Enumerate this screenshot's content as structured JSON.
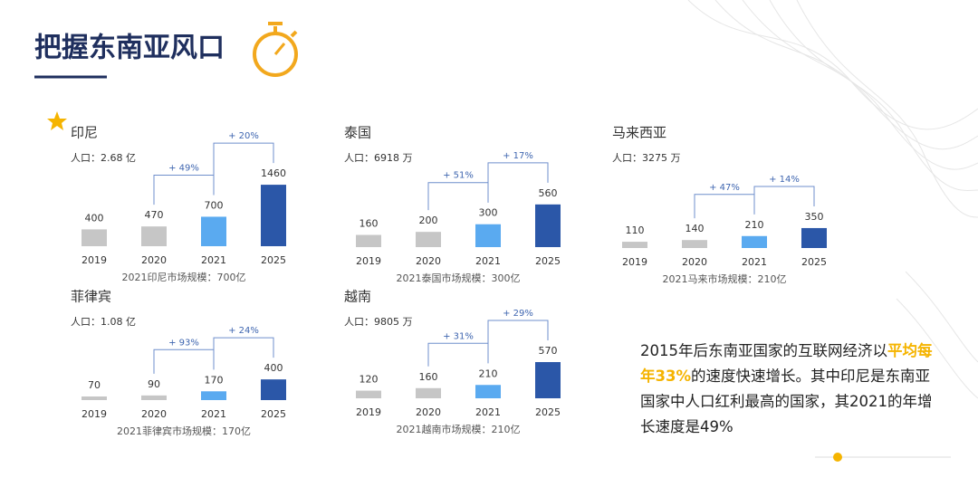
{
  "title": "把握东南亚风口",
  "chart_data": [
    {
      "type": "bar",
      "title": "印尼",
      "subtitle": "人口：2.68 亿",
      "categories": [
        "2019",
        "2020",
        "2021",
        "2025"
      ],
      "values": [
        400,
        470,
        700,
        1460
      ],
      "colors": [
        "#c6c6c6",
        "#c6c6c6",
        "#5aaaf0",
        "#2b57a8"
      ],
      "growth_labels": [
        null,
        null,
        "+ 49%",
        "+ 20%"
      ],
      "footer": "2021印尼市场规模：700亿",
      "ylim": [
        0,
        1720
      ]
    },
    {
      "type": "bar",
      "title": "泰国",
      "subtitle": "人口：6918 万",
      "categories": [
        "2019",
        "2020",
        "2021",
        "2025"
      ],
      "values": [
        160,
        200,
        300,
        560
      ],
      "colors": [
        "#c6c6c6",
        "#c6c6c6",
        "#5aaaf0",
        "#2b57a8"
      ],
      "growth_labels": [
        null,
        null,
        "+ 51%",
        "+ 17%"
      ],
      "footer": "2021泰国市场规模：300亿",
      "ylim": [
        0,
        950
      ]
    },
    {
      "type": "bar",
      "title": "马来西亚",
      "subtitle": "人口：3275 万",
      "categories": [
        "2019",
        "2020",
        "2021",
        "2025"
      ],
      "values": [
        110,
        140,
        210,
        350
      ],
      "colors": [
        "#c6c6c6",
        "#c6c6c6",
        "#5aaaf0",
        "#2b57a8"
      ],
      "growth_labels": [
        null,
        null,
        "+ 47%",
        "+ 14%"
      ],
      "footer": "2021马来市场规模：210亿",
      "ylim": [
        0,
        1270
      ]
    },
    {
      "type": "bar",
      "title": "菲律宾",
      "subtitle": "人口：1.08 亿",
      "categories": [
        "2019",
        "2020",
        "2021",
        "2025"
      ],
      "values": [
        70,
        90,
        170,
        400
      ],
      "colors": [
        "#c6c6c6",
        "#c6c6c6",
        "#5aaaf0",
        "#2b57a8"
      ],
      "growth_labels": [
        null,
        null,
        "+ 93%",
        "+ 24%"
      ],
      "footer": "2021菲律宾市场规模：170亿",
      "ylim": [
        0,
        1400
      ]
    },
    {
      "type": "bar",
      "title": "越南",
      "subtitle": "人口：9805 万",
      "categories": [
        "2019",
        "2020",
        "2021",
        "2025"
      ],
      "values": [
        120,
        160,
        210,
        570
      ],
      "colors": [
        "#c6c6c6",
        "#c6c6c6",
        "#5aaaf0",
        "#2b57a8"
      ],
      "growth_labels": [
        null,
        null,
        "+ 31%",
        "+ 29%"
      ],
      "footer": "2021越南市场规模：210亿",
      "ylim": [
        0,
        1140
      ]
    }
  ],
  "summary": [
    "2015年后东南亚国家的互联网经济以",
    "平均每年33%",
    "的速度快速增长。其中印尼是东南亚国家中人口红利最高的国家，其2021的年增长速度是49%"
  ]
}
